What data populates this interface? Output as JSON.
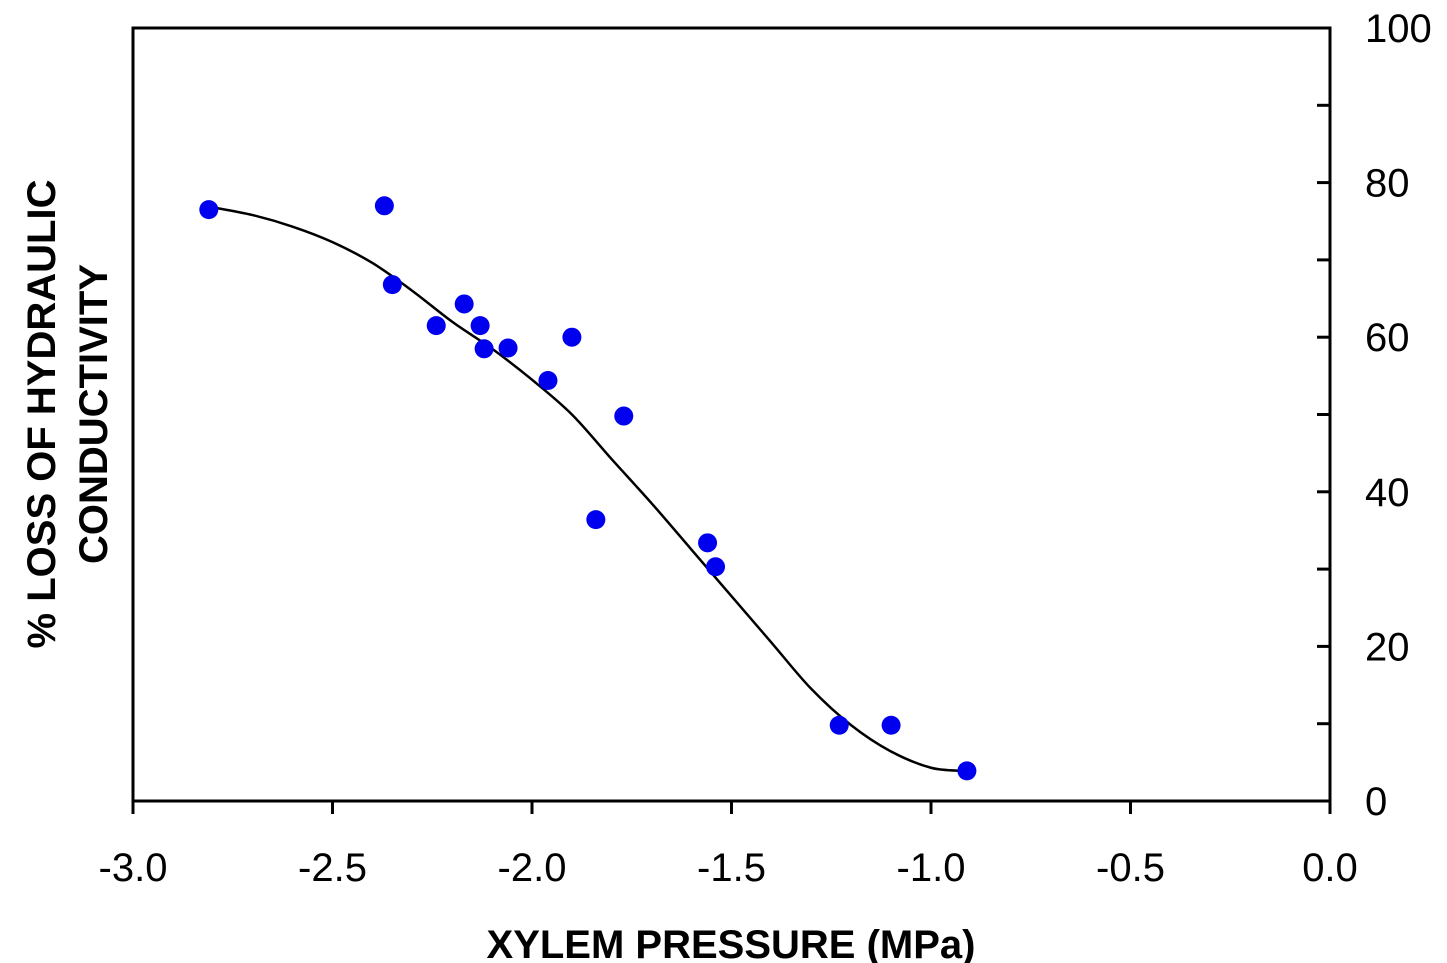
{
  "chart_data": {
    "type": "scatter",
    "title": "",
    "xlabel": "XYLEM PRESSURE (MPa)",
    "ylabel_lines": [
      "% LOSS OF HYDRAULIC",
      "CONDUCTIVITY"
    ],
    "xlim": [
      -3.0,
      0.0
    ],
    "ylim": [
      0,
      100
    ],
    "x_ticks": [
      -3.0,
      -2.5,
      -2.0,
      -1.5,
      -1.0,
      -0.5,
      0.0
    ],
    "x_tick_labels": [
      "-3.0",
      "-2.5",
      "-2.0",
      "-1.5",
      "-1.0",
      "-0.5",
      "0.0"
    ],
    "y_ticks_major": [
      0,
      20,
      40,
      60,
      80,
      100
    ],
    "y_tick_labels": [
      "0",
      "20",
      "40",
      "60",
      "80",
      "100"
    ],
    "y_ticks_minor": [
      10,
      30,
      50,
      70,
      90
    ],
    "y_axis_side": "right",
    "grid": false,
    "legend": "none",
    "points": [
      {
        "x": -2.81,
        "y": 76.5
      },
      {
        "x": -2.37,
        "y": 77.0
      },
      {
        "x": -2.35,
        "y": 66.8
      },
      {
        "x": -2.24,
        "y": 61.5
      },
      {
        "x": -2.17,
        "y": 64.3
      },
      {
        "x": -2.13,
        "y": 61.5
      },
      {
        "x": -2.12,
        "y": 58.5
      },
      {
        "x": -2.06,
        "y": 58.6
      },
      {
        "x": -1.96,
        "y": 54.4
      },
      {
        "x": -1.9,
        "y": 60.0
      },
      {
        "x": -1.77,
        "y": 49.8
      },
      {
        "x": -1.84,
        "y": 36.4
      },
      {
        "x": -1.56,
        "y": 33.4
      },
      {
        "x": -1.54,
        "y": 30.3
      },
      {
        "x": -1.23,
        "y": 9.8
      },
      {
        "x": -1.1,
        "y": 9.8
      },
      {
        "x": -0.91,
        "y": 3.9
      }
    ],
    "fit_curve": {
      "x": [
        -2.8,
        -2.7,
        -2.6,
        -2.5,
        -2.4,
        -2.3,
        -2.2,
        -2.1,
        -2.0,
        -1.9,
        -1.8,
        -1.7,
        -1.6,
        -1.5,
        -1.4,
        -1.3,
        -1.2,
        -1.1,
        -1.0,
        -0.92
      ],
      "y": [
        76.8,
        75.8,
        74.3,
        72.3,
        69.6,
        66.0,
        62.0,
        58.5,
        54.5,
        50.0,
        44.2,
        38.5,
        32.5,
        26.5,
        20.5,
        14.5,
        9.8,
        6.4,
        4.3,
        3.9
      ]
    },
    "colors": {
      "points": "#0000ee",
      "curve": "#000000",
      "axes": "#000000"
    }
  }
}
